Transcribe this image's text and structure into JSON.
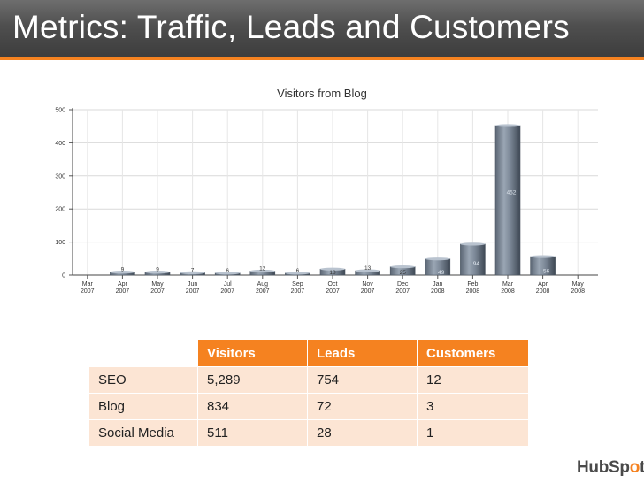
{
  "slide": {
    "title": "Metrics: Traffic, Leads and Customers"
  },
  "chart_data": {
    "type": "bar",
    "title": "Visitors from Blog",
    "xlabel": "",
    "ylabel": "",
    "ylim": [
      0,
      500
    ],
    "yticks": [
      0,
      100,
      200,
      300,
      400,
      500
    ],
    "grid": true,
    "categories": [
      [
        "Mar",
        "2007"
      ],
      [
        "Apr",
        "2007"
      ],
      [
        "May",
        "2007"
      ],
      [
        "Jun",
        "2007"
      ],
      [
        "Jul",
        "2007"
      ],
      [
        "Aug",
        "2007"
      ],
      [
        "Sep",
        "2007"
      ],
      [
        "Oct",
        "2007"
      ],
      [
        "Nov",
        "2007"
      ],
      [
        "Dec",
        "2007"
      ],
      [
        "Jan",
        "2008"
      ],
      [
        "Feb",
        "2008"
      ],
      [
        "Mar",
        "2008"
      ],
      [
        "Apr",
        "2008"
      ],
      [
        "May",
        "2008"
      ]
    ],
    "values": [
      null,
      9,
      9,
      7,
      6,
      12,
      6,
      18,
      13,
      25,
      49,
      94,
      452,
      56,
      null
    ],
    "bar_color": "#7b8796"
  },
  "table": {
    "headers": [
      "",
      "Visitors",
      "Leads",
      "Customers"
    ],
    "rows": [
      [
        "SEO",
        "5,289",
        "754",
        "12"
      ],
      [
        "Blog",
        "834",
        "72",
        "3"
      ],
      [
        "Social Media",
        "511",
        "28",
        "1"
      ]
    ],
    "header_color": "#f58220",
    "row_color": "#fce5d4"
  },
  "logo": {
    "text_a": "HubSp",
    "dot": "o",
    "text_b": "t"
  }
}
